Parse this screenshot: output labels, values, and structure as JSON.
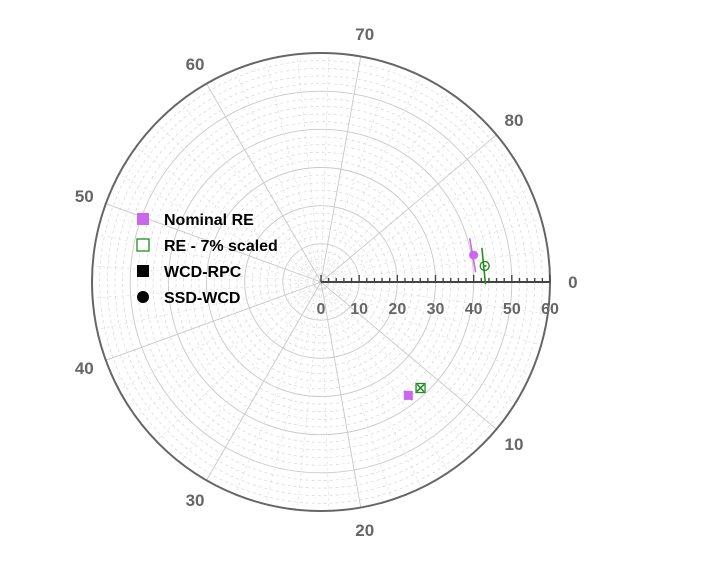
{
  "chart_data": {
    "type": "scatter",
    "projection": "polar",
    "angle_axis": {
      "range": [
        0,
        90
      ],
      "direction": "clockwise",
      "zero_position": "right",
      "tick_labels": [
        "0",
        "10",
        "20",
        "30",
        "40",
        "50",
        "60",
        "70",
        "80"
      ]
    },
    "radial_axis": {
      "range": [
        0,
        60
      ],
      "tick_labels": [
        "0",
        "10",
        "20",
        "30",
        "40",
        "50",
        "60"
      ]
    },
    "grid": true,
    "legend": {
      "placement": "left",
      "entries": [
        {
          "label": "Nominal RE",
          "marker": "filled-square",
          "color": "#cc66ee"
        },
        {
          "label": "RE - 7% scaled",
          "marker": "open-square",
          "color": "#228b22"
        },
        {
          "label": "WCD-RPC",
          "marker": "filled-square",
          "color": "#000000"
        },
        {
          "label": "SSD-WCD",
          "marker": "filled-circle",
          "color": "#000000"
        }
      ]
    },
    "series": [
      {
        "points": [
          {
            "angle": 13.1,
            "r": 37.5,
            "marker": "filled-square",
            "color": "#cc66ee",
            "err_r": 1.6,
            "err_angle": 0.4
          },
          {
            "angle": 87.5,
            "r": 40.6,
            "marker": "filled-circle",
            "color": "#cc66ee",
            "err_r": 0.5,
            "err_angle": 1.6
          }
        ]
      },
      {
        "points": [
          {
            "angle": 11.7,
            "r": 38.1,
            "marker": "open-square",
            "color": "#228b22",
            "err_r": 1.3,
            "err_angle": 0.5
          },
          {
            "angle": 88.6,
            "r": 43.1,
            "marker": "open-circle",
            "color": "#228b22",
            "err_r": 0.5,
            "err_angle": 1.6
          }
        ]
      }
    ]
  }
}
